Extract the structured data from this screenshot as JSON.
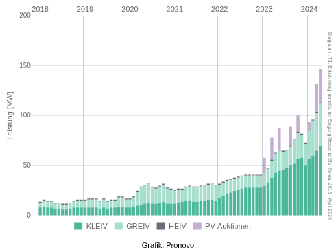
{
  "chart_data": {
    "type": "bar",
    "stacked": true,
    "ylabel": "Leistung [MW]",
    "annotations": [
      "Grafik: Pronovo",
      "Diagramm: T1, Entwicklung monatlicher Eingang Gesuche EIV Januar 2018 - April 2024"
    ],
    "categories": [
      "2018",
      null,
      null,
      null,
      null,
      null,
      null,
      null,
      null,
      null,
      null,
      null,
      "2019",
      null,
      null,
      null,
      null,
      null,
      null,
      null,
      null,
      null,
      null,
      null,
      "2020",
      null,
      null,
      null,
      null,
      null,
      null,
      null,
      null,
      null,
      null,
      null,
      "2021",
      null,
      null,
      null,
      null,
      null,
      null,
      null,
      null,
      null,
      null,
      null,
      "2022",
      null,
      null,
      null,
      null,
      null,
      null,
      null,
      null,
      null,
      null,
      null,
      "2023",
      null,
      null,
      null,
      null,
      null,
      null,
      null,
      null,
      null,
      null,
      null,
      "2024",
      null,
      null,
      null
    ],
    "series": [
      {
        "name": "KLEIV",
        "color": "#4db899",
        "values": [
          8,
          9,
          8,
          8,
          7,
          7,
          6,
          6,
          7,
          8,
          8,
          8,
          8,
          8,
          8,
          8,
          7,
          8,
          7,
          8,
          8,
          9,
          9,
          8,
          8,
          9,
          10,
          11,
          12,
          13,
          12,
          12,
          13,
          14,
          12,
          12,
          12,
          13,
          14,
          15,
          15,
          14,
          14,
          15,
          15,
          16,
          16,
          15,
          18,
          20,
          22,
          23,
          25,
          26,
          27,
          28,
          28,
          28,
          28,
          28,
          30,
          33,
          38,
          43,
          45,
          46,
          48,
          50,
          52,
          57,
          58,
          50,
          57,
          60,
          65,
          70
        ]
      },
      {
        "name": "GREIV",
        "color": "#a8dece",
        "values": [
          5,
          6,
          6,
          6,
          5,
          5,
          5,
          5,
          5,
          6,
          7,
          7,
          7,
          8,
          8,
          8,
          7,
          8,
          7,
          7,
          7,
          9,
          9,
          8,
          8,
          9,
          14,
          17,
          18,
          19,
          16,
          15,
          16,
          17,
          15,
          14,
          13,
          13,
          12,
          13,
          14,
          14,
          14,
          14,
          15,
          15,
          16,
          15,
          13,
          13,
          13,
          13,
          12,
          12,
          12,
          12,
          12,
          12,
          12,
          12,
          13,
          14,
          17,
          19,
          20,
          18,
          17,
          19,
          24,
          26,
          23,
          22,
          28,
          35,
          38,
          43
        ]
      },
      {
        "name": "HEIV",
        "color": "#6b6b7a",
        "values": [
          1,
          1,
          1,
          1,
          1,
          1,
          1,
          1,
          1,
          1,
          1,
          1,
          1,
          1,
          1,
          1,
          1,
          1,
          1,
          1,
          1,
          1,
          1,
          1,
          1,
          1,
          1,
          1,
          1,
          1,
          1,
          1,
          1,
          1,
          1,
          1,
          1,
          1,
          1,
          1,
          1,
          1,
          1,
          1,
          1,
          1,
          1,
          1,
          1,
          1,
          1,
          1,
          1,
          1,
          1,
          1,
          1,
          1,
          1,
          1,
          1,
          1,
          1,
          1,
          1,
          1,
          1,
          1,
          1,
          1,
          1,
          1,
          1,
          1,
          1,
          1
        ]
      },
      {
        "name": "PV-Auktionen",
        "color": "#c4afd0",
        "values": [
          0,
          0,
          0,
          0,
          0,
          0,
          0,
          0,
          0,
          0,
          0,
          0,
          0,
          0,
          0,
          0,
          0,
          0,
          0,
          0,
          0,
          0,
          0,
          0,
          0,
          0,
          0,
          0,
          0,
          0,
          0,
          0,
          0,
          0,
          0,
          0,
          0,
          0,
          0,
          0,
          0,
          0,
          0,
          0,
          0,
          0,
          0,
          0,
          0,
          0,
          0,
          0,
          0,
          0,
          0,
          0,
          0,
          0,
          0,
          0,
          14,
          0,
          22,
          0,
          22,
          0,
          0,
          19,
          0,
          17,
          0,
          0,
          8,
          0,
          28,
          33
        ]
      }
    ],
    "ylim": [
      0,
      200
    ],
    "yticks": [
      0,
      50,
      100,
      150,
      200
    ],
    "grid": true,
    "legend": "bottom"
  }
}
